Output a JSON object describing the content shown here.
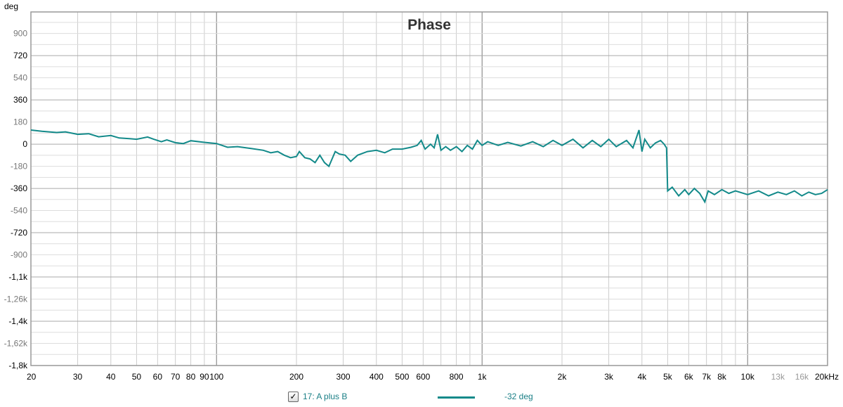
{
  "chart_data": {
    "type": "line",
    "title": "Phase",
    "ylabel": "deg",
    "xlabel": "Hz",
    "xscale": "log",
    "xlim": [
      20,
      20000
    ],
    "ylim": [
      -1800,
      1075
    ],
    "grid": true,
    "yticks": [
      {
        "v": 900,
        "label": "900"
      },
      {
        "v": 720,
        "label": "720"
      },
      {
        "v": 540,
        "label": "540"
      },
      {
        "v": 360,
        "label": "360"
      },
      {
        "v": 180,
        "label": "180"
      },
      {
        "v": 0,
        "label": "0"
      },
      {
        "v": -180,
        "label": "-180"
      },
      {
        "v": -360,
        "label": "-360"
      },
      {
        "v": -540,
        "label": "-540"
      },
      {
        "v": -720,
        "label": "-720"
      },
      {
        "v": -900,
        "label": "-900"
      },
      {
        "v": -1080,
        "label": "-1,1k"
      },
      {
        "v": -1260,
        "label": "-1,26k"
      },
      {
        "v": -1440,
        "label": "-1,4k"
      },
      {
        "v": -1620,
        "label": "-1,62k"
      },
      {
        "v": -1800,
        "label": "-1,8k"
      }
    ],
    "xticks": [
      {
        "v": 20,
        "label": "20"
      },
      {
        "v": 30,
        "label": "30"
      },
      {
        "v": 40,
        "label": "40"
      },
      {
        "v": 50,
        "label": "50"
      },
      {
        "v": 60,
        "label": "60"
      },
      {
        "v": 70,
        "label": "70"
      },
      {
        "v": 80,
        "label": "80"
      },
      {
        "v": 90,
        "label": "90"
      },
      {
        "v": 100,
        "label": "100"
      },
      {
        "v": 200,
        "label": "200"
      },
      {
        "v": 300,
        "label": "300"
      },
      {
        "v": 400,
        "label": "400"
      },
      {
        "v": 500,
        "label": "500"
      },
      {
        "v": 600,
        "label": "600"
      },
      {
        "v": 800,
        "label": "800"
      },
      {
        "v": 1000,
        "label": "1k"
      },
      {
        "v": 2000,
        "label": "2k"
      },
      {
        "v": 3000,
        "label": "3k"
      },
      {
        "v": 4000,
        "label": "4k"
      },
      {
        "v": 5000,
        "label": "5k"
      },
      {
        "v": 6000,
        "label": "6k"
      },
      {
        "v": 7000,
        "label": "7k"
      },
      {
        "v": 8000,
        "label": "8k"
      },
      {
        "v": 10000,
        "label": "10k"
      },
      {
        "v": 13000,
        "label": "13k",
        "muted": true
      },
      {
        "v": 16000,
        "label": "16k",
        "muted": true
      },
      {
        "v": 20000,
        "label": "20kHz"
      }
    ],
    "series": [
      {
        "name": "17: A plus B",
        "color": "#138a8a",
        "value_label": "-32 deg",
        "checked": true,
        "points": [
          [
            20,
            115
          ],
          [
            22,
            105
          ],
          [
            25,
            95
          ],
          [
            27,
            100
          ],
          [
            30,
            80
          ],
          [
            33,
            85
          ],
          [
            36,
            60
          ],
          [
            40,
            70
          ],
          [
            43,
            50
          ],
          [
            47,
            45
          ],
          [
            50,
            40
          ],
          [
            55,
            58
          ],
          [
            58,
            40
          ],
          [
            62,
            20
          ],
          [
            65,
            35
          ],
          [
            70,
            12
          ],
          [
            75,
            5
          ],
          [
            80,
            28
          ],
          [
            90,
            15
          ],
          [
            100,
            5
          ],
          [
            110,
            -25
          ],
          [
            120,
            -20
          ],
          [
            135,
            -35
          ],
          [
            150,
            -50
          ],
          [
            160,
            -70
          ],
          [
            170,
            -60
          ],
          [
            180,
            -90
          ],
          [
            190,
            -110
          ],
          [
            200,
            -100
          ],
          [
            205,
            -60
          ],
          [
            215,
            -110
          ],
          [
            225,
            -120
          ],
          [
            235,
            -150
          ],
          [
            245,
            -90
          ],
          [
            255,
            -150
          ],
          [
            265,
            -180
          ],
          [
            280,
            -60
          ],
          [
            290,
            -80
          ],
          [
            305,
            -90
          ],
          [
            320,
            -140
          ],
          [
            340,
            -90
          ],
          [
            370,
            -60
          ],
          [
            400,
            -50
          ],
          [
            430,
            -70
          ],
          [
            460,
            -40
          ],
          [
            500,
            -40
          ],
          [
            540,
            -25
          ],
          [
            570,
            -10
          ],
          [
            590,
            30
          ],
          [
            610,
            -40
          ],
          [
            640,
            0
          ],
          [
            660,
            -30
          ],
          [
            680,
            80
          ],
          [
            700,
            -50
          ],
          [
            730,
            -20
          ],
          [
            760,
            -50
          ],
          [
            800,
            -20
          ],
          [
            840,
            -60
          ],
          [
            880,
            -10
          ],
          [
            920,
            -40
          ],
          [
            960,
            30
          ],
          [
            1000,
            -10
          ],
          [
            1050,
            20
          ],
          [
            1150,
            -10
          ],
          [
            1250,
            15
          ],
          [
            1400,
            -15
          ],
          [
            1550,
            20
          ],
          [
            1700,
            -20
          ],
          [
            1850,
            30
          ],
          [
            2000,
            -10
          ],
          [
            2200,
            40
          ],
          [
            2400,
            -30
          ],
          [
            2600,
            30
          ],
          [
            2800,
            -20
          ],
          [
            3000,
            40
          ],
          [
            3200,
            -20
          ],
          [
            3500,
            30
          ],
          [
            3700,
            -30
          ],
          [
            3900,
            115
          ],
          [
            4000,
            -60
          ],
          [
            4100,
            40
          ],
          [
            4300,
            -30
          ],
          [
            4500,
            10
          ],
          [
            4700,
            30
          ],
          [
            4850,
            0
          ],
          [
            4950,
            -30
          ],
          [
            5000,
            -380
          ],
          [
            5200,
            -350
          ],
          [
            5500,
            -420
          ],
          [
            5800,
            -370
          ],
          [
            6000,
            -410
          ],
          [
            6300,
            -360
          ],
          [
            6600,
            -400
          ],
          [
            6900,
            -470
          ],
          [
            7100,
            -380
          ],
          [
            7500,
            -410
          ],
          [
            8000,
            -370
          ],
          [
            8500,
            -400
          ],
          [
            9000,
            -380
          ],
          [
            10000,
            -410
          ],
          [
            11000,
            -380
          ],
          [
            12000,
            -420
          ],
          [
            13000,
            -390
          ],
          [
            14000,
            -410
          ],
          [
            15000,
            -380
          ],
          [
            16000,
            -420
          ],
          [
            17000,
            -390
          ],
          [
            18000,
            -410
          ],
          [
            19000,
            -400
          ],
          [
            20000,
            -370
          ]
        ]
      }
    ]
  }
}
